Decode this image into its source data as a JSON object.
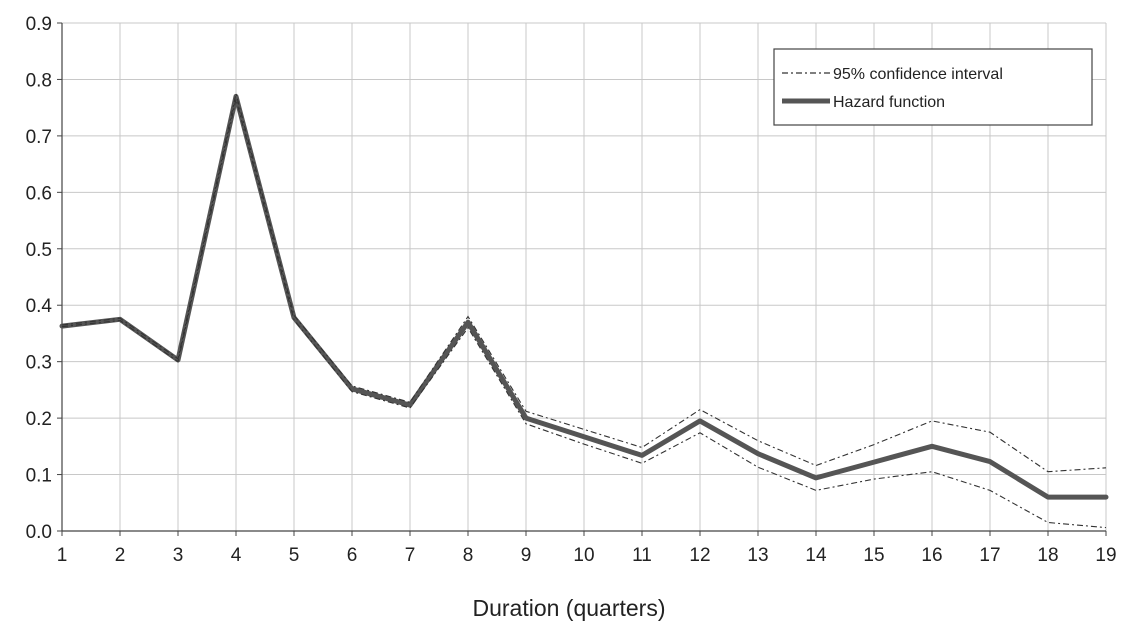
{
  "chart_data": {
    "type": "line",
    "title": "",
    "xlabel": "Duration (quarters)",
    "ylabel": "",
    "x": [
      1,
      2,
      3,
      4,
      5,
      6,
      7,
      8,
      9,
      10,
      11,
      12,
      13,
      14,
      15,
      16,
      17,
      18,
      19
    ],
    "xlim": [
      1,
      19
    ],
    "ylim": [
      0,
      0.9
    ],
    "y_ticks": [
      "0.0",
      "0.1",
      "0.2",
      "0.3",
      "0.4",
      "0.5",
      "0.6",
      "0.7",
      "0.8",
      "0.9"
    ],
    "grid": true,
    "legend_position": "top-right",
    "series": [
      {
        "name": "95% confidence interval",
        "style": "dash-dot",
        "color": "#333333",
        "upper": [
          0.365,
          0.377,
          0.305,
          0.775,
          0.382,
          0.257,
          0.228,
          0.38,
          0.212,
          0.18,
          0.148,
          0.215,
          0.16,
          0.116,
          0.153,
          0.195,
          0.175,
          0.105,
          0.112
        ],
        "lower": [
          0.362,
          0.373,
          0.3,
          0.765,
          0.374,
          0.247,
          0.218,
          0.36,
          0.19,
          0.154,
          0.12,
          0.174,
          0.113,
          0.072,
          0.092,
          0.105,
          0.072,
          0.015,
          0.006
        ]
      },
      {
        "name": "Hazard function",
        "style": "solid",
        "color": "#555555",
        "values": [
          0.363,
          0.375,
          0.303,
          0.77,
          0.378,
          0.252,
          0.223,
          0.37,
          0.2,
          0.167,
          0.134,
          0.195,
          0.137,
          0.094,
          0.122,
          0.15,
          0.123,
          0.06,
          0.06
        ]
      }
    ]
  }
}
